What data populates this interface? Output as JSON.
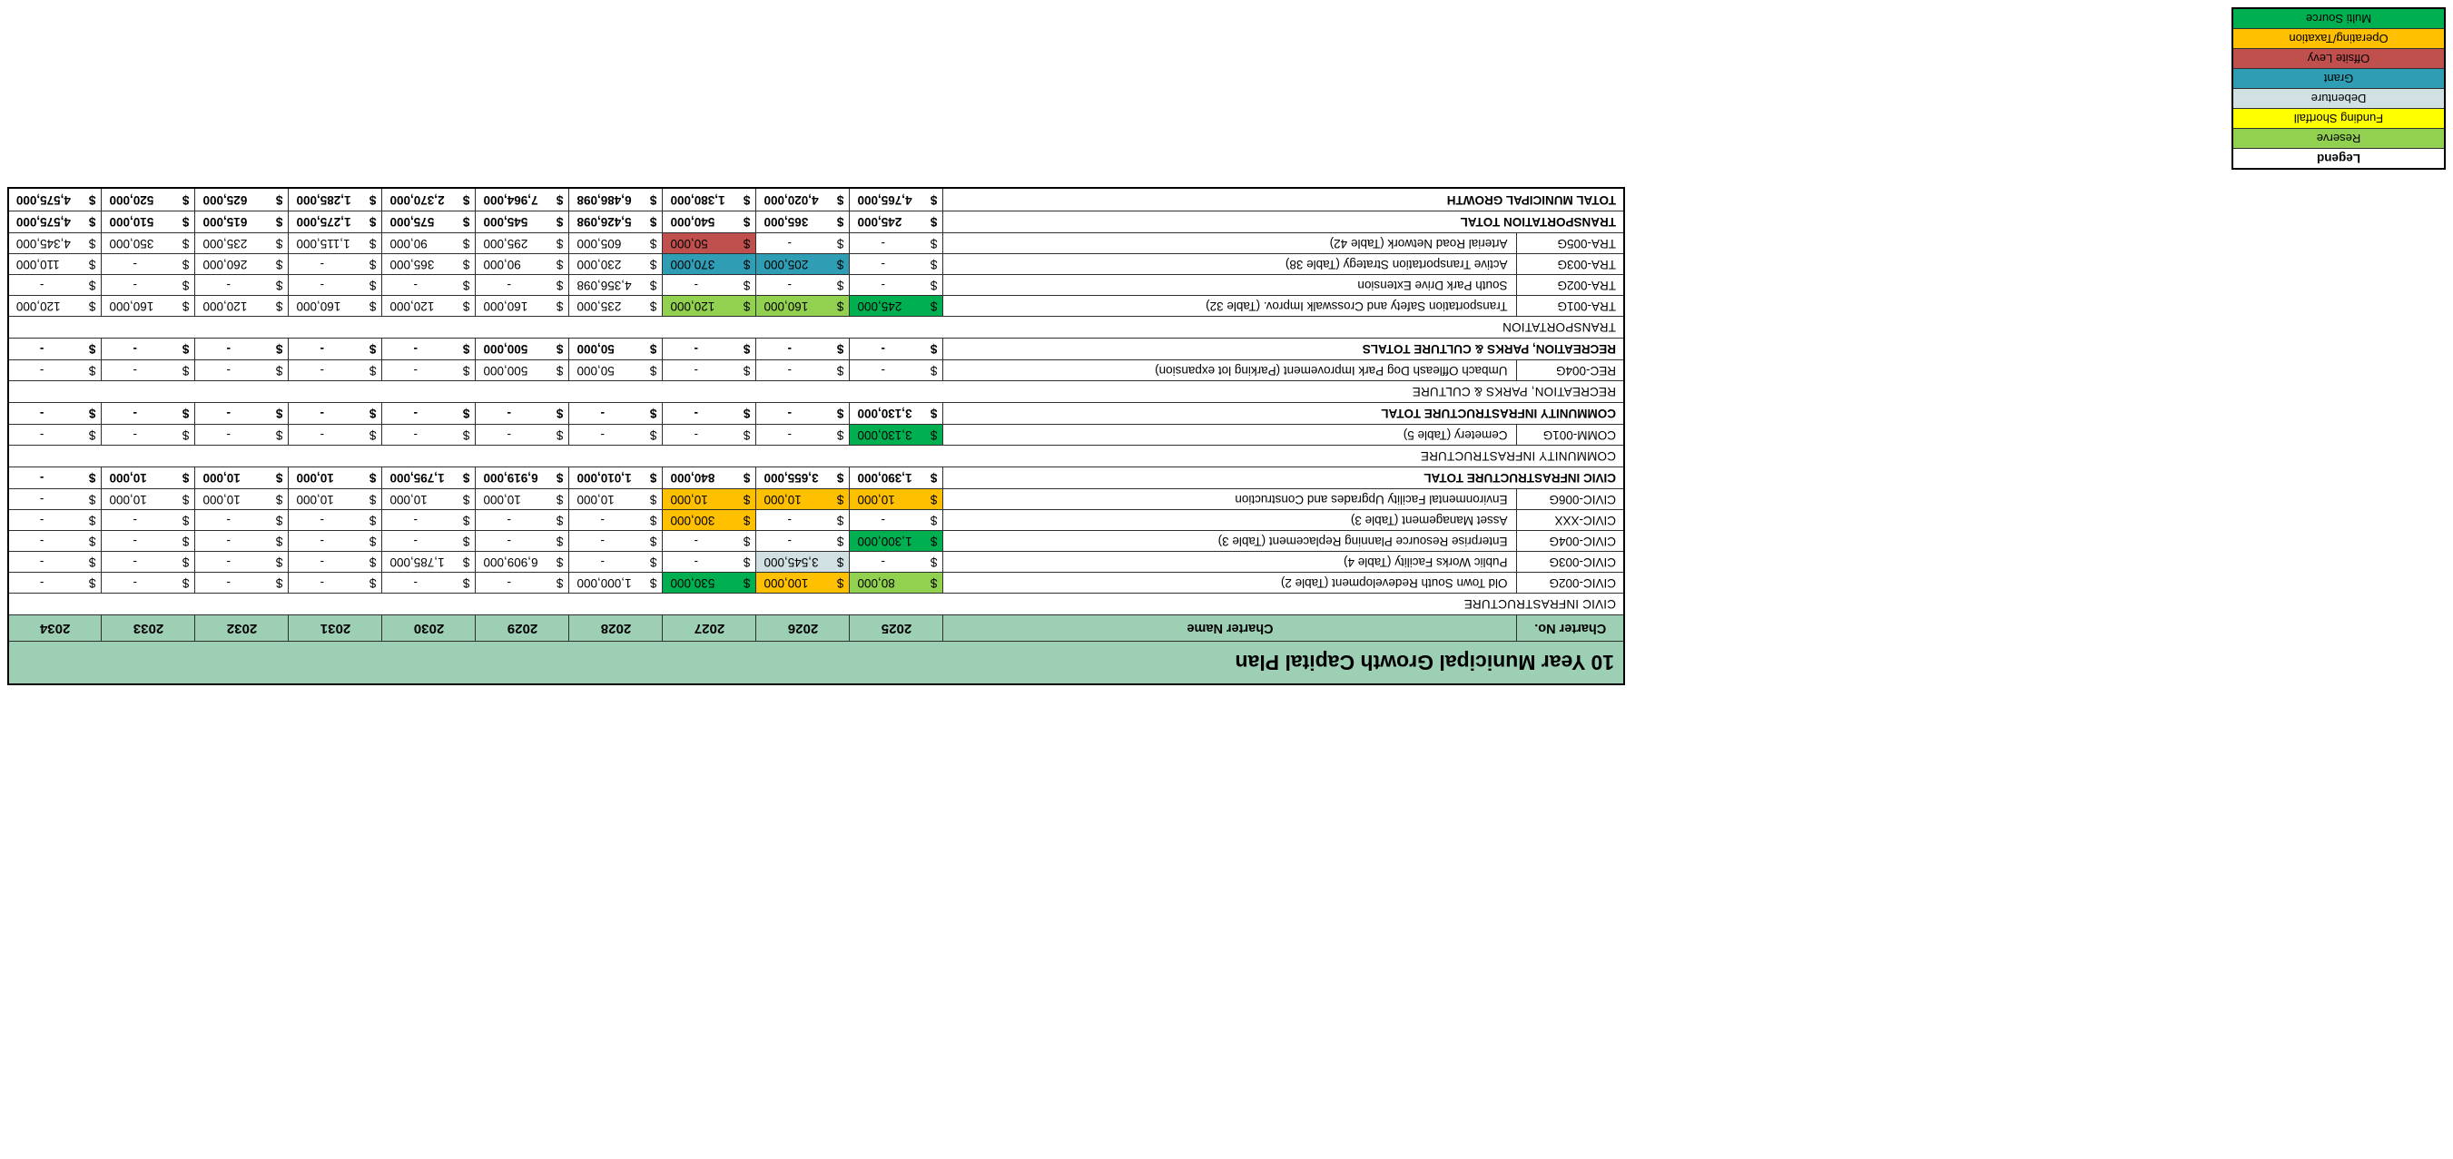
{
  "table": {
    "title": "10 Year Municipal Growth Capital Plan",
    "columns": [
      "Charter No.",
      "Charter Name",
      "2025",
      "2026",
      "2027",
      "2028",
      "2029",
      "2030",
      "2031",
      "2032",
      "2033",
      "2034"
    ],
    "rows": [
      {
        "type": "section",
        "label": "CIVIC INFRASTRUCTURE"
      },
      {
        "type": "data",
        "no": "CIVIC-002G",
        "name": "Old Town South Redevelopment (Table 2)",
        "values": [
          "80,000",
          "100,000",
          "530,000",
          "1,000,000",
          "-",
          "-",
          "-",
          "-",
          "-",
          "-"
        ],
        "hl": {
          "0": "reserve",
          "1": "operating_taxation",
          "2": "multi_source"
        }
      },
      {
        "type": "data",
        "no": "CIVIC-003G",
        "name": "Public Works Facility (Table 4)",
        "values": [
          "-",
          "3,545,000",
          "-",
          "-",
          "6,909,000",
          "1,785,000",
          "-",
          "-",
          "-",
          "-"
        ],
        "hl": {
          "1": "debenture"
        }
      },
      {
        "type": "data",
        "no": "CIVIC-004G",
        "name": "Enterprise Resource Planning Replacement (Table 3)",
        "values": [
          "1,300,000",
          "-",
          "-",
          "-",
          "-",
          "-",
          "-",
          "-",
          "-",
          "-"
        ],
        "hl": {
          "0": "multi_source"
        }
      },
      {
        "type": "data",
        "no": "CIVIC-XXX",
        "name": "Asset Management (Table 3)",
        "values": [
          "-",
          "-",
          "300,000",
          "-",
          "-",
          "-",
          "-",
          "-",
          "-",
          "-"
        ],
        "hl": {
          "2": "operating_taxation"
        }
      },
      {
        "type": "data",
        "no": "CIVIC-006G",
        "name": "Environmental Facility Upgrades and Construction",
        "values": [
          "10,000",
          "10,000",
          "10,000",
          "10,000",
          "10,000",
          "10,000",
          "10,000",
          "10,000",
          "10,000",
          "-"
        ],
        "hl": {
          "0": "operating_taxation",
          "1": "operating_taxation",
          "2": "operating_taxation"
        }
      },
      {
        "type": "total",
        "label": "CIVIC INFRASTRUCTURE TOTAL",
        "values": [
          "1,390,000",
          "3,655,000",
          "840,000",
          "1,010,000",
          "6,919,000",
          "1,795,000",
          "10,000",
          "10,000",
          "10,000",
          "-"
        ]
      },
      {
        "type": "section",
        "label": "COMMUNITY INFRASTRUCTURE"
      },
      {
        "type": "data",
        "no": "COMM-001G",
        "name": "Cemetery (Table 5)",
        "values": [
          "3,130,000",
          "-",
          "-",
          "-",
          "-",
          "-",
          "-",
          "-",
          "-",
          "-"
        ],
        "hl": {
          "0": "multi_source"
        }
      },
      {
        "type": "total",
        "label": "COMMUNITY INFRASTRUCTURE TOTAL",
        "values": [
          "3,130,000",
          "-",
          "-",
          "-",
          "-",
          "-",
          "-",
          "-",
          "-",
          "-"
        ]
      },
      {
        "type": "section",
        "label": "RECREATION, PARKS & CULTURE"
      },
      {
        "type": "data",
        "no": "REC-004G",
        "name": "Umbach Offleash Dog Park Improvement (Parking lot expansion)",
        "values": [
          "-",
          "-",
          "-",
          "50,000",
          "500,000",
          "-",
          "-",
          "-",
          "-",
          "-"
        ]
      },
      {
        "type": "total",
        "label": "RECREATION, PARKS & CULTURE TOTALS",
        "values": [
          "-",
          "-",
          "-",
          "50,000",
          "500,000",
          "-",
          "-",
          "-",
          "-",
          "-"
        ]
      },
      {
        "type": "section",
        "label": "TRANSPORTATION"
      },
      {
        "type": "data",
        "no": "TRA-001G",
        "name": "Transportation Safety and Crosswalk Improv. (Table 32)",
        "values": [
          "245,000",
          "160,000",
          "120,000",
          "235,000",
          "160,000",
          "120,000",
          "160,000",
          "120,000",
          "160,000",
          "120,000"
        ],
        "hl": {
          "0": "multi_source",
          "1": "reserve",
          "2": "reserve"
        }
      },
      {
        "type": "data",
        "no": "TRA-002G",
        "name": "South Park Drive Extension",
        "values": [
          "-",
          "-",
          "-",
          "4,356,098",
          "-",
          "-",
          "-",
          "-",
          "-",
          "-"
        ]
      },
      {
        "type": "data",
        "no": "TRA-003G",
        "name": "Active Transportation Strategy (Table 38)",
        "values": [
          "-",
          "205,000",
          "370,000",
          "230,000",
          "90,000",
          "365,000",
          "-",
          "260,000",
          "-",
          "110,000"
        ],
        "hl": {
          "1": "grant",
          "2": "grant"
        }
      },
      {
        "type": "data",
        "no": "TRA-005G",
        "name": "Arterial Road Network (Table 42)",
        "values": [
          "-",
          "-",
          "50,000",
          "605,000",
          "295,000",
          "90,000",
          "1,115,000",
          "235,000",
          "350,000",
          "4,345,000"
        ],
        "hl": {
          "2": "offsite_levy"
        }
      },
      {
        "type": "total",
        "label": "TRANSPORTATION TOTAL",
        "values": [
          "245,000",
          "365,000",
          "540,000",
          "5,426,098",
          "545,000",
          "575,000",
          "1,275,000",
          "615,000",
          "510,000",
          "4,575,000"
        ]
      },
      {
        "type": "grand",
        "label": "TOTAL MUNICIPAL GROWTH",
        "values": [
          "4,765,000",
          "4,020,000",
          "1,380,000",
          "6,486,098",
          "7,964,000",
          "2,370,000",
          "1,285,000",
          "625,000",
          "520,000",
          "4,575,000"
        ]
      }
    ],
    "currency_symbol": "$"
  },
  "legend": {
    "title": "Legend",
    "items": [
      {
        "label": "Reserve",
        "color_key": "reserve"
      },
      {
        "label": "Funding Shortfall",
        "color_key": "funding_shortfall"
      },
      {
        "label": "Debenture",
        "color_key": "debenture"
      },
      {
        "label": "Grant",
        "color_key": "grant"
      },
      {
        "label": "Offsite Levy",
        "color_key": "offsite_levy"
      },
      {
        "label": "Operating/Taxation",
        "color_key": "operating_taxation"
      },
      {
        "label": "Multi Source",
        "color_key": "multi_source"
      }
    ]
  },
  "colors": {
    "header_band": "#9dcfb4",
    "reserve": "#92d050",
    "funding_shortfall": "#ffff00",
    "debenture": "#d0e0e3",
    "grant": "#2f9eb5",
    "offsite_levy": "#c0504d",
    "operating_taxation": "#ffc000",
    "multi_source": "#00b050"
  }
}
